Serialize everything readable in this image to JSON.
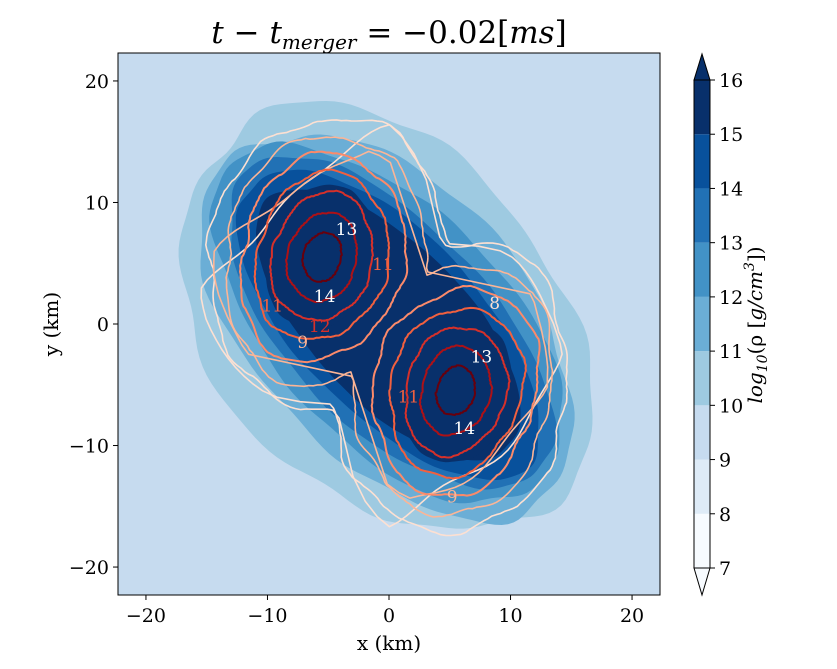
{
  "chart_data": {
    "type": "heatmap",
    "title": "t − t_merger = −0.02[ms]",
    "title_parts": {
      "t": "t",
      "minus": " − ",
      "tm": "t",
      "sub": "merger",
      "eq": " = −0.02[",
      "unit": "ms",
      "close": "]"
    },
    "xlabel": "x (km)",
    "ylabel": "y (km)",
    "xlim": [
      -22.3,
      22.3
    ],
    "ylim": [
      -22.3,
      22.3
    ],
    "xticks": [
      -20,
      -10,
      0,
      10,
      20
    ],
    "yticks": [
      -20,
      -10,
      0,
      10,
      20
    ],
    "xtick_labels": [
      "−20",
      "−10",
      "0",
      "10",
      "20"
    ],
    "ytick_labels": [
      "−20",
      "−10",
      "0",
      "10",
      "20"
    ],
    "colorbar": {
      "label": "log10(ρ [g/cm3])",
      "label_parts": {
        "log": "log",
        "sub": "10",
        "open": "(ρ [",
        "unit": "g/cm",
        "sup": "3",
        "close": "])"
      },
      "levels": [
        7,
        8,
        9,
        10,
        11,
        12,
        13,
        14,
        15,
        16
      ],
      "tick_labels": [
        "7",
        "8",
        "9",
        "10",
        "11",
        "12",
        "13",
        "14",
        "15",
        "16"
      ],
      "extend": "both",
      "colormap": "Blues",
      "colors": [
        "#f7fbff",
        "#deebf7",
        "#c6dbef",
        "#9ecae1",
        "#6baed6",
        "#4292c6",
        "#2171b5",
        "#08519c",
        "#08306b"
      ]
    },
    "stars": [
      {
        "center": [
          -5.5,
          5.5
        ],
        "angle_deg": -105
      },
      {
        "center": [
          5.5,
          -5.5
        ],
        "angle_deg": -105
      }
    ],
    "filled_levels": [
      {
        "level": 9,
        "core": [
          -0.3,
          0.3
        ],
        "a": 20.0,
        "b": 14.0,
        "angle_deg": -48
      },
      {
        "level": 10,
        "core": [
          0.0,
          0.0
        ],
        "a": 19.0,
        "b": 11.2,
        "angle_deg": -47
      },
      {
        "level": 11,
        "core": [
          0.0,
          0.0
        ],
        "a": 18.2,
        "b": 9.6,
        "angle_deg": -46
      },
      {
        "level": 12,
        "core": [
          0.0,
          0.0
        ],
        "a": 17.2,
        "b": 8.3,
        "angle_deg": -46
      },
      {
        "level": 13,
        "core": [
          0.0,
          0.0
        ],
        "a": 16.2,
        "b": 7.4,
        "angle_deg": -46
      },
      {
        "level": 14,
        "core": [
          0.0,
          0.0
        ],
        "a": 14.2,
        "b": 6.4,
        "angle_deg": -46
      }
    ],
    "contour_lines": {
      "colormap": "Reds",
      "levels": [
        8,
        9,
        10,
        11,
        12,
        13,
        14
      ],
      "colors": [
        "#fde0d2",
        "#fcb596",
        "#fb8a6a",
        "#f1603f",
        "#d6302a",
        "#ad1116",
        "#67000d"
      ],
      "labels": [
        {
          "text": "14",
          "x": -5.3,
          "y": 2.2
        },
        {
          "text": "14",
          "x": 6.2,
          "y": -8.7
        },
        {
          "text": "13",
          "x": -3.5,
          "y": 7.7
        },
        {
          "text": "13",
          "x": 7.6,
          "y": -2.8
        },
        {
          "text": "12",
          "x": -5.7,
          "y": -0.3
        },
        {
          "text": "11",
          "x": -9.6,
          "y": 1.4
        },
        {
          "text": "11",
          "x": -0.5,
          "y": 4.8
        },
        {
          "text": "11",
          "x": 1.6,
          "y": -6.1
        },
        {
          "text": "9",
          "x": -7.1,
          "y": -1.6
        },
        {
          "text": "9",
          "x": 5.2,
          "y": -14.3
        },
        {
          "text": "8",
          "x": 8.7,
          "y": 1.6
        }
      ]
    }
  }
}
